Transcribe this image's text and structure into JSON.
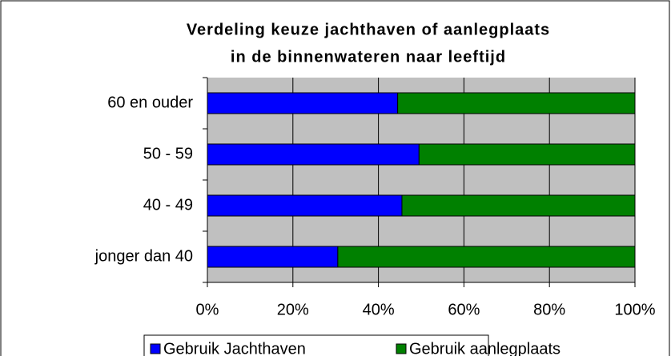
{
  "chart_data": {
    "type": "stacked-bar-horizontal",
    "title": [
      "Verdeling keuze jachthaven of aanlegplaats",
      "in de binnenwateren naar leeftijd"
    ],
    "categories": [
      "60 en ouder",
      "50 - 59",
      "40 - 49",
      "jonger dan 40"
    ],
    "series": [
      {
        "name": "Gebruik Jachthaven",
        "color": "#0000ff",
        "values": [
          44.5,
          49.5,
          45.5,
          30.5
        ]
      },
      {
        "name": "Gebruik aanlegplaats",
        "color": "#008000",
        "values": [
          55.5,
          50.5,
          54.5,
          69.5
        ]
      }
    ],
    "xlim": [
      0,
      100
    ],
    "xticks": [
      {
        "value": 0,
        "label": "0%"
      },
      {
        "value": 20,
        "label": "20%"
      },
      {
        "value": 40,
        "label": "40%"
      },
      {
        "value": 60,
        "label": "60%"
      },
      {
        "value": 80,
        "label": "80%"
      },
      {
        "value": 100,
        "label": "100%"
      }
    ],
    "grid": true,
    "plot_background": "#c0c0c0",
    "legend": "bottom"
  }
}
